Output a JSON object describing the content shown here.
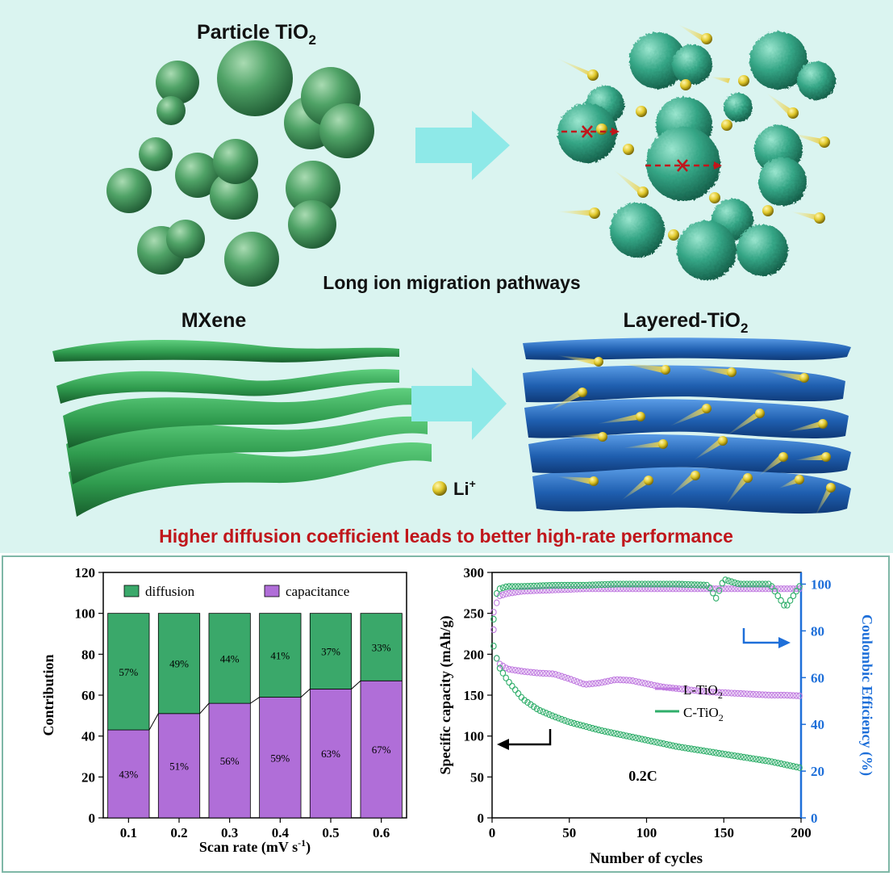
{
  "top": {
    "particle_title": "Particle TiO",
    "particle_title_sub": "2",
    "pathway_caption": "Long ion migration pathways",
    "mxene_title": "MXene",
    "layered_title": "Layered-TiO",
    "layered_title_sub": "2",
    "li_label": "Li",
    "li_label_sup": "+",
    "conclusion": "Higher diffusion coefficient leads to better high-rate performance",
    "colors": {
      "panel_bg": "#daf4f0",
      "sphere_green": "#4fa266",
      "rough_sphere": "#3aa88a",
      "sheet_green": "#2f9b4e",
      "sheet_blue": "#1f5fb0",
      "arrow_cyan": "#8ee9e8",
      "li_yellow": "#e0c82a",
      "conclusion_red": "#c0161b"
    }
  },
  "chart_data": [
    {
      "type": "bar",
      "stacked": true,
      "categories": [
        "0.1",
        "0.2",
        "0.3",
        "0.4",
        "0.5",
        "0.6"
      ],
      "series": [
        {
          "name": "capacitance",
          "values": [
            43,
            51,
            56,
            59,
            63,
            67
          ],
          "labels": [
            "43%",
            "51%",
            "56%",
            "59%",
            "63%",
            "67%"
          ],
          "color": "#b06ed8"
        },
        {
          "name": "diffusion",
          "values": [
            57,
            49,
            44,
            41,
            37,
            33
          ],
          "labels": [
            "57%",
            "49%",
            "44%",
            "41%",
            "37%",
            "33%"
          ],
          "color": "#3aa86a"
        }
      ],
      "xlabel": "Scan rate (mV s",
      "xlabel_sup": "-1",
      "xlabel_end": ")",
      "ylabel": "Contribution",
      "ylim": [
        0,
        120
      ],
      "yticks": [
        "0",
        "20",
        "40",
        "60",
        "80",
        "100",
        "120"
      ],
      "legend": "top"
    },
    {
      "type": "scatter",
      "xlabel": "Number of cycles",
      "ylabel": "Specific capacity (mAh/g)",
      "y2label": "Coulombic Efficiency (%)",
      "xlim": [
        0,
        200
      ],
      "ylim": [
        0,
        300
      ],
      "y2lim": [
        0,
        105
      ],
      "xticks": [
        "0",
        "50",
        "100",
        "150",
        "200"
      ],
      "yticks": [
        "0",
        "50",
        "100",
        "150",
        "200",
        "250",
        "300"
      ],
      "y2ticks": [
        "0",
        "20",
        "40",
        "60",
        "80",
        "100"
      ],
      "annotation": "0.2C",
      "legend_entries": [
        {
          "label": "L-TiO",
          "sub": "2",
          "color": "#c07ae0"
        },
        {
          "label": "C-TiO",
          "sub": "2",
          "color": "#2fae6a"
        }
      ],
      "series": [
        {
          "name": "L-TiO2 capacity",
          "axis": "left",
          "color": "#c07ae0",
          "points": [
            [
              1,
              230
            ],
            [
              3,
              195
            ],
            [
              5,
              188
            ],
            [
              10,
              182
            ],
            [
              20,
              179
            ],
            [
              30,
              177
            ],
            [
              40,
              176
            ],
            [
              50,
              170
            ],
            [
              60,
              163
            ],
            [
              70,
              165
            ],
            [
              80,
              169
            ],
            [
              90,
              168
            ],
            [
              100,
              164
            ],
            [
              110,
              160
            ],
            [
              120,
              158
            ],
            [
              130,
              156
            ],
            [
              140,
              154
            ],
            [
              150,
              153
            ],
            [
              160,
              152
            ],
            [
              170,
              151
            ],
            [
              180,
              150
            ],
            [
              190,
              150
            ],
            [
              200,
              149
            ]
          ]
        },
        {
          "name": "C-TiO2 capacity",
          "axis": "left",
          "color": "#2fae6a",
          "points": [
            [
              1,
              210
            ],
            [
              3,
              195
            ],
            [
              5,
              183
            ],
            [
              10,
              168
            ],
            [
              20,
              145
            ],
            [
              30,
              132
            ],
            [
              40,
              124
            ],
            [
              50,
              117
            ],
            [
              60,
              112
            ],
            [
              70,
              107
            ],
            [
              80,
              103
            ],
            [
              90,
              99
            ],
            [
              100,
              95
            ],
            [
              110,
              91
            ],
            [
              120,
              87
            ],
            [
              130,
              84
            ],
            [
              140,
              81
            ],
            [
              150,
              78
            ],
            [
              160,
              75
            ],
            [
              170,
              72
            ],
            [
              180,
              69
            ],
            [
              190,
              65
            ],
            [
              200,
              61
            ]
          ]
        },
        {
          "name": "L-TiO2 efficiency",
          "axis": "right",
          "color": "#c07ae0",
          "points": [
            [
              1,
              88
            ],
            [
              3,
              92
            ],
            [
              5,
              95
            ],
            [
              10,
              96
            ],
            [
              20,
              97
            ],
            [
              40,
              97.5
            ],
            [
              60,
              98
            ],
            [
              80,
              98
            ],
            [
              100,
              98
            ],
            [
              120,
              98
            ],
            [
              140,
              98
            ],
            [
              160,
              98
            ],
            [
              180,
              98
            ],
            [
              200,
              98
            ]
          ]
        },
        {
          "name": "C-TiO2 efficiency",
          "axis": "right",
          "color": "#2fae6a",
          "points": [
            [
              1,
              85
            ],
            [
              3,
              96
            ],
            [
              5,
              98
            ],
            [
              10,
              99
            ],
            [
              20,
              99
            ],
            [
              40,
              99.5
            ],
            [
              60,
              99.5
            ],
            [
              80,
              100
            ],
            [
              100,
              100
            ],
            [
              120,
              100
            ],
            [
              140,
              99.5
            ],
            [
              145,
              94
            ],
            [
              150,
              102
            ],
            [
              160,
              100
            ],
            [
              180,
              100
            ],
            [
              190,
              90
            ],
            [
              200,
              100
            ]
          ]
        }
      ]
    }
  ]
}
